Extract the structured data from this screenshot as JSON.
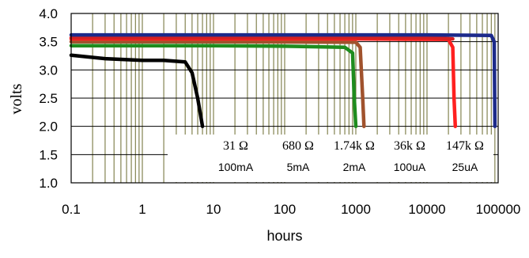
{
  "chart_data": {
    "type": "line",
    "xlabel": "hours",
    "ylabel": "volts",
    "x_scale": "log",
    "xlim": [
      0.1,
      100000
    ],
    "ylim": [
      1.0,
      4.0
    ],
    "grid": true,
    "x_ticks": [
      "0.1",
      "1",
      "10",
      "100",
      "1000",
      "10000",
      "100000"
    ],
    "y_ticks": [
      "1.0",
      "1.5",
      "2.0",
      "2.5",
      "3.0",
      "3.5",
      "4.0"
    ],
    "annotations": {
      "resistances": [
        "31 Ω",
        "680 Ω",
        "1.74k Ω",
        "36k Ω",
        "147k Ω"
      ],
      "currents": [
        "100mA",
        "5mA",
        "2mA",
        "100uA",
        "25uA"
      ]
    },
    "series": [
      {
        "color": "#000000",
        "points": [
          [
            0.1,
            3.26
          ],
          [
            0.3,
            3.2
          ],
          [
            1,
            3.17
          ],
          [
            2,
            3.17
          ],
          [
            4,
            3.14
          ],
          [
            5,
            2.95
          ],
          [
            6,
            2.5
          ],
          [
            7,
            2.0
          ]
        ]
      },
      {
        "color": "#1e8c1e",
        "points": [
          [
            0.1,
            3.43
          ],
          [
            10,
            3.43
          ],
          [
            100,
            3.42
          ],
          [
            700,
            3.4
          ],
          [
            900,
            3.3
          ],
          [
            950,
            2.5
          ],
          [
            1000,
            2.0
          ]
        ]
      },
      {
        "color": "#a0522d",
        "points": [
          [
            0.1,
            3.5
          ],
          [
            10,
            3.5
          ],
          [
            1000,
            3.49
          ],
          [
            1150,
            3.4
          ],
          [
            1250,
            2.5
          ],
          [
            1300,
            2.0
          ]
        ]
      },
      {
        "color": "#ff2020",
        "points": [
          [
            0.1,
            3.55
          ],
          [
            1000,
            3.55
          ],
          [
            20000,
            3.54
          ],
          [
            23000,
            3.4
          ],
          [
            24000,
            2.5
          ],
          [
            25000,
            2.0
          ]
        ]
      },
      {
        "color": "#d62020",
        "points": [
          [
            0.1,
            3.57
          ],
          [
            1000,
            3.57
          ],
          [
            10000,
            3.57
          ],
          [
            23000,
            3.55
          ]
        ]
      },
      {
        "color": "#1c2a8a",
        "points": [
          [
            0.1,
            3.62
          ],
          [
            1000,
            3.62
          ],
          [
            10000,
            3.62
          ],
          [
            80000,
            3.61
          ],
          [
            88000,
            3.5
          ],
          [
            90000,
            2.0
          ]
        ]
      }
    ]
  }
}
